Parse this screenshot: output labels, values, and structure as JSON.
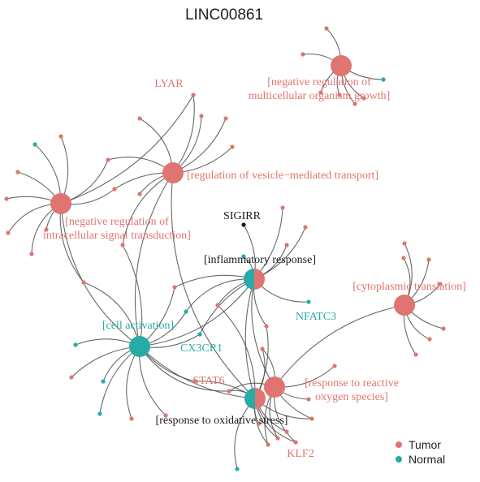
{
  "title": "LINC00861",
  "colors": {
    "tumor": "#E07470",
    "normal": "#26ABA6",
    "black": "#1a1a1a"
  },
  "legend": [
    {
      "label": "Tumor",
      "group": "tumor"
    },
    {
      "label": "Normal",
      "group": "normal"
    }
  ],
  "terms": [
    {
      "id": "t-multicell",
      "lines": [
        "[negative regulation of",
        "multicellular organism growth]"
      ],
      "group": "tumor"
    },
    {
      "id": "t-vesicle",
      "lines": [
        "[regulation of vesicle−mediated transport]"
      ],
      "group": "tumor"
    },
    {
      "id": "t-intracell",
      "lines": [
        "[negative regulation of",
        "intracellular signal transduction]"
      ],
      "group": "tumor"
    },
    {
      "id": "t-inflam",
      "lines": [
        "[inflammatory response]"
      ],
      "group": "mixed"
    },
    {
      "id": "t-cyto",
      "lines": [
        "[cytoplasmic translation]"
      ],
      "group": "tumor"
    },
    {
      "id": "t-cellact",
      "lines": [
        "[cell activation]"
      ],
      "group": "normal"
    },
    {
      "id": "t-ros",
      "lines": [
        "[response to reactive",
        "oxygen species]"
      ],
      "group": "tumor"
    },
    {
      "id": "t-oxstress",
      "lines": [
        "[response to oxidative stress]"
      ],
      "group": "mixed"
    }
  ],
  "genes": [
    {
      "id": "g-lyar",
      "label": "LYAR",
      "group": "tumor"
    },
    {
      "id": "g-sigirr",
      "label": "SIGIRR",
      "group": "black"
    },
    {
      "id": "g-nfatc3",
      "label": "NFATC3",
      "group": "normal"
    },
    {
      "id": "g-cx3cr1",
      "label": "CX3CR1",
      "group": "normal"
    },
    {
      "id": "g-stat6",
      "label": "STAT6",
      "group": "tumor"
    },
    {
      "id": "g-klf2",
      "label": "KLF2",
      "group": "tumor"
    }
  ]
}
